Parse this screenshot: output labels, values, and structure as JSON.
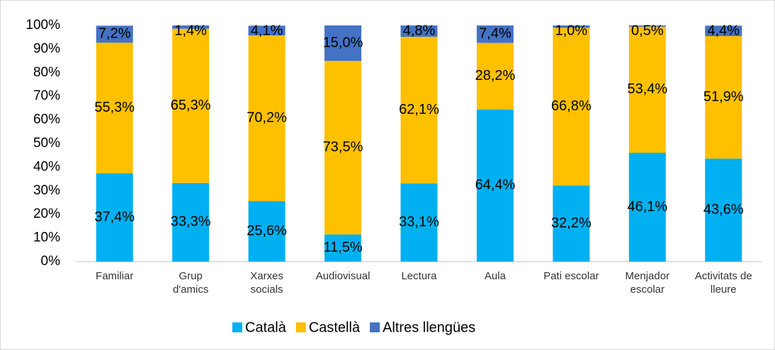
{
  "chart_data": {
    "type": "stacked_bar",
    "categories": [
      "Familiar",
      "Grup\nd'amics",
      "Xarxes\nsocials",
      "Audiovisual",
      "Lectura",
      "Aula",
      "Pati escolar",
      "Menjador\nescolar",
      "Activitats de\nlleure"
    ],
    "series": [
      {
        "name": "Català",
        "color": "#00b0f0",
        "values": [
          37.4,
          33.3,
          25.6,
          11.5,
          33.1,
          64.4,
          32.2,
          46.1,
          43.6
        ],
        "value_labels": [
          "37,4%",
          "33,3%",
          "25,6%",
          "11,5%",
          "33,1%",
          "64,4%",
          "32,2%",
          "46,1%",
          "43,6%"
        ]
      },
      {
        "name": "Castellà",
        "color": "#ffc000",
        "values": [
          55.3,
          65.3,
          70.2,
          73.5,
          62.1,
          28.2,
          66.8,
          53.4,
          51.9
        ],
        "value_labels": [
          "55,3%",
          "65,3%",
          "70,2%",
          "73,5%",
          "62,1%",
          "28,2%",
          "66,8%",
          "53,4%",
          "51,9%"
        ]
      },
      {
        "name": "Altres llengües",
        "color": "#4472c4",
        "values": [
          7.2,
          1.4,
          4.1,
          15.0,
          4.8,
          7.4,
          1.0,
          0.5,
          4.4
        ],
        "value_labels": [
          "7,2%",
          "1,4%",
          "4,1%",
          "15,0%",
          "4,8%",
          "7,4%",
          "1,0%",
          "0,5%",
          "4,4%"
        ]
      }
    ],
    "ylim": [
      0,
      100
    ],
    "yticks": [
      {
        "value": 0,
        "label": "0%"
      },
      {
        "value": 10,
        "label": "10%"
      },
      {
        "value": 20,
        "label": "20%"
      },
      {
        "value": 30,
        "label": "30%"
      },
      {
        "value": 40,
        "label": "40%"
      },
      {
        "value": 50,
        "label": "50%"
      },
      {
        "value": 60,
        "label": "60%"
      },
      {
        "value": 70,
        "label": "70%"
      },
      {
        "value": 80,
        "label": "80%"
      },
      {
        "value": 90,
        "label": "90%"
      },
      {
        "value": 100,
        "label": "100%"
      }
    ],
    "legend": "bottom"
  }
}
